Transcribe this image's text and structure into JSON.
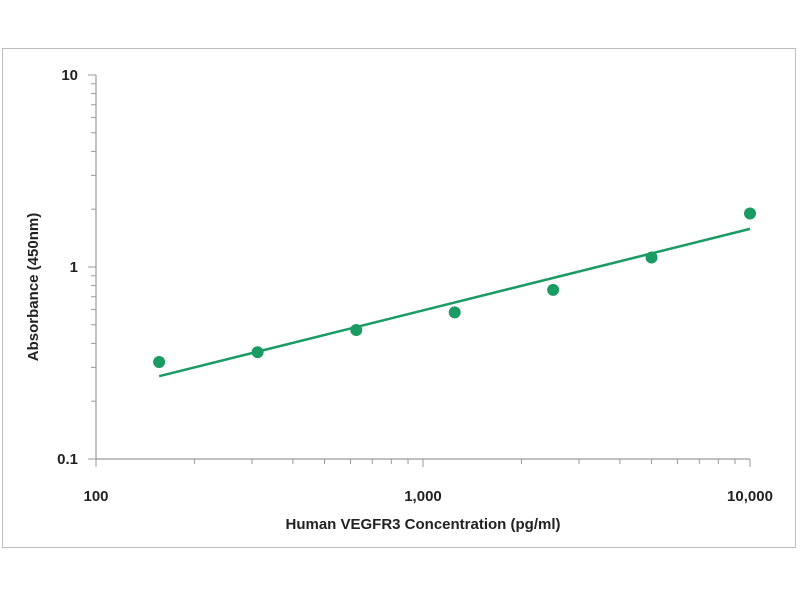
{
  "chart_data": {
    "type": "scatter",
    "xlabel": "Human VEGFR3 Concentration (pg/ml)",
    "ylabel": "Absorbance (450nm)",
    "x_scale": "log",
    "y_scale": "log",
    "xlim": [
      100,
      10000
    ],
    "ylim": [
      0.1,
      10
    ],
    "x_ticks": [
      100,
      1000,
      10000
    ],
    "x_tick_labels": [
      "100",
      "1,000",
      "10,000"
    ],
    "y_ticks": [
      0.1,
      1,
      10
    ],
    "y_tick_labels": [
      "0.1",
      "1",
      "10"
    ],
    "grid": false,
    "series": [
      {
        "x": [
          156,
          312,
          625,
          1250,
          2500,
          5000,
          10000
        ],
        "y": [
          0.32,
          0.36,
          0.47,
          0.58,
          0.76,
          1.12,
          1.9
        ]
      }
    ],
    "trendline": {
      "x": [
        156,
        10000
      ],
      "y": [
        0.27,
        1.58
      ]
    },
    "colors": {
      "marker": "#1a9b63",
      "line": "#1a9b63",
      "axis": "#9a9a9a"
    }
  }
}
